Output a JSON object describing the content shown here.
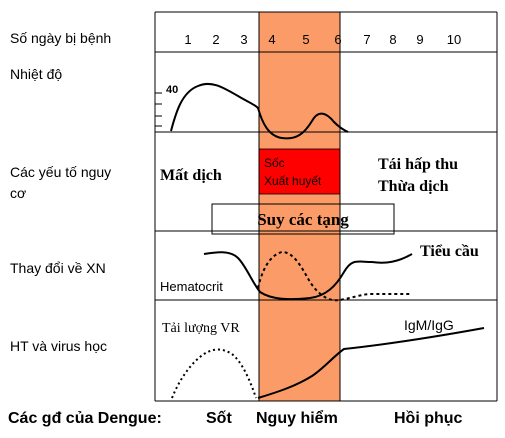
{
  "rows": {
    "days_sick": "Số ngày bị bệnh",
    "temperature": "Nhiệt độ",
    "risk_factors_l1": "Các yếu tố nguy",
    "risk_factors_l2": "cơ",
    "lab_changes": "Thay đổi về XN",
    "serology": "HT và virus học"
  },
  "days": [
    "1",
    "2",
    "3",
    "4",
    "5",
    "6",
    "7",
    "8",
    "9",
    "10"
  ],
  "temp_tick": "40",
  "risk": {
    "fluid_loss": "Mất dịch",
    "shock": "Sốc",
    "hemorrhage": "Xuất huyết",
    "reabsorb_l1": "Tái hấp thu",
    "reabsorb_l2": "Thừa dịch",
    "organ_failure": "Suy các tạng"
  },
  "lab": {
    "platelets": "Tiểu cầu",
    "hematocrit": "Hematocrit"
  },
  "sero": {
    "viral_load": "Tải lượng VR",
    "igm_igg": "IgM/IgG"
  },
  "phases": {
    "title": "Các gđ của Dengue:",
    "fever": "Sốt",
    "critical": "Nguy hiểm",
    "recovery": "Hồi phục"
  },
  "colors": {
    "critical_band": "#fb9c68",
    "shock_box": "#ff0000"
  }
}
